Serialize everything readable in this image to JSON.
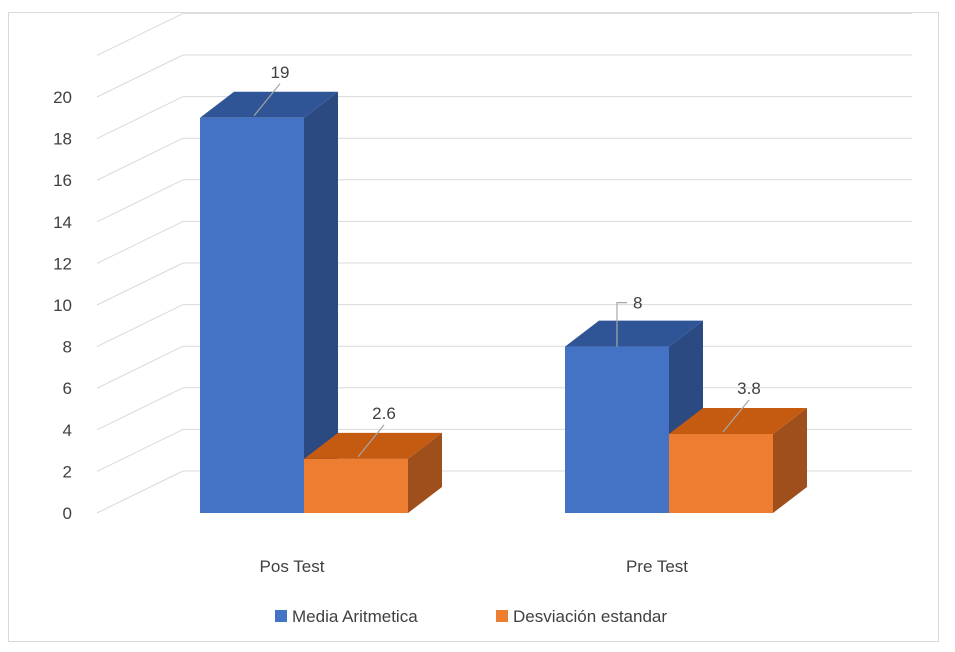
{
  "chart_data": {
    "type": "bar",
    "title": "",
    "xlabel": "",
    "ylabel": "",
    "categories": [
      "Pos Test",
      "Pre Test"
    ],
    "series": [
      {
        "name": "Media Aritmetica",
        "values": [
          19,
          8
        ],
        "labels": [
          "19",
          "8"
        ],
        "color": "#4472C4",
        "side_color": "#2B4A82",
        "top_color": "#2F5597"
      },
      {
        "name": "Desviación estandar",
        "values": [
          2.6,
          3.8
        ],
        "labels": [
          "2.6",
          "3.8"
        ],
        "color": "#ED7D31",
        "side_color": "#9E4F1B",
        "top_color": "#C55A11"
      }
    ],
    "ylim": [
      0,
      20
    ],
    "yticks": [
      "0",
      "2",
      "4",
      "6",
      "8",
      "10",
      "12",
      "14",
      "16",
      "18",
      "20"
    ],
    "grid": true,
    "legend": "bottom",
    "style": "3d-clustered-column"
  }
}
